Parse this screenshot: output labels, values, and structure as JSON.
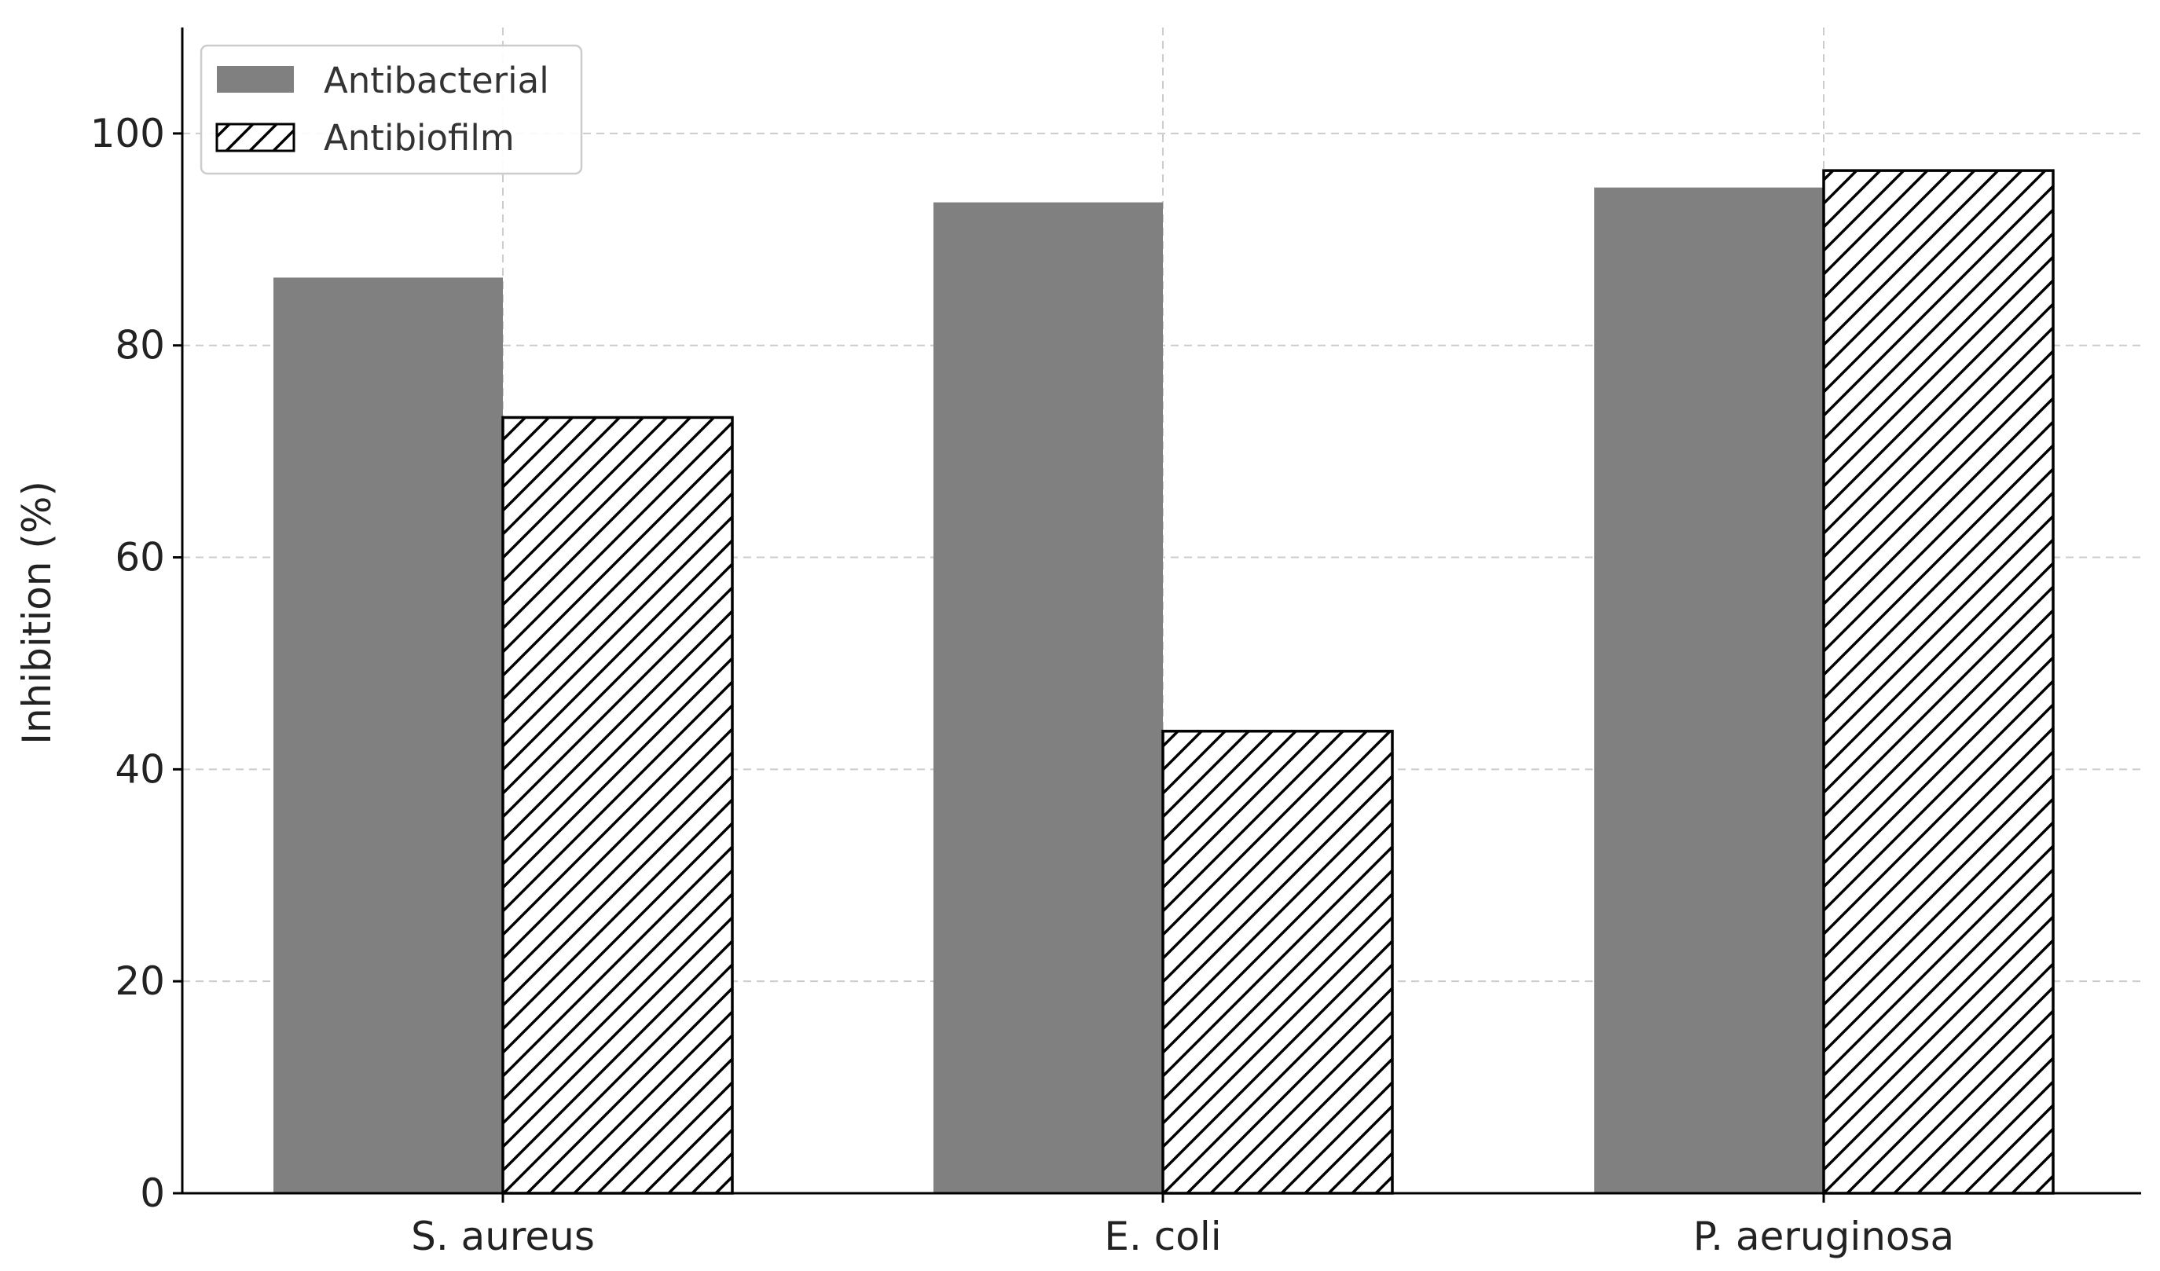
{
  "chart_data": {
    "type": "bar",
    "categories": [
      "S. aureus",
      "E. coli",
      "P. aeruginosa"
    ],
    "series": [
      {
        "name": "Antibacterial",
        "values": [
          86.4,
          93.5,
          94.9
        ],
        "fill": "#808080",
        "pattern": "solid"
      },
      {
        "name": "Antibiofilm",
        "values": [
          73.2,
          43.6,
          96.5
        ],
        "fill": "#ffffff",
        "pattern": "hatch"
      }
    ],
    "title": "",
    "xlabel": "",
    "ylabel": "Inhibition (%)",
    "ylim": [
      0,
      110
    ],
    "yticks": [
      0,
      20,
      40,
      60,
      80,
      100
    ],
    "ytick_labels": [
      "0",
      "20",
      "40",
      "60",
      "80",
      "100"
    ],
    "grid": true,
    "legend": {
      "position": "top-left",
      "entries": [
        "Antibacterial",
        "Antibiofilm"
      ]
    },
    "colors": {
      "antibacterial": "#808080",
      "antibiofilm_edge": "#000000",
      "grid": "#cccccc",
      "axis": "#000000"
    }
  }
}
